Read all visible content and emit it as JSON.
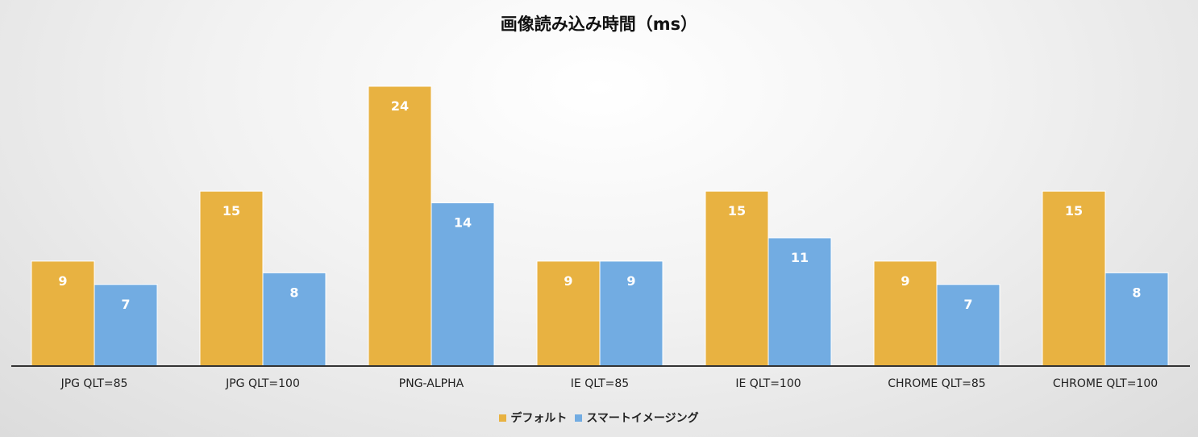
{
  "chart_data": {
    "type": "bar",
    "title": "画像読み込み時間（ms）",
    "categories": [
      "JPG QLT=85",
      "JPG QLT=100",
      "PNG-ALPHA",
      "IE QLT=85",
      "IE QLT=100",
      "CHROME QLT=85",
      "CHROME QLT=100"
    ],
    "series": [
      {
        "name": "デフォルト",
        "color": "#E8B241",
        "values": [
          9,
          15,
          24,
          9,
          15,
          9,
          15
        ]
      },
      {
        "name": "スマートイメージング",
        "color": "#72ACE2",
        "values": [
          7,
          8,
          14,
          9,
          11,
          7,
          8
        ]
      }
    ],
    "ylim": [
      0,
      24
    ],
    "grid": false,
    "legend": "bottom"
  }
}
